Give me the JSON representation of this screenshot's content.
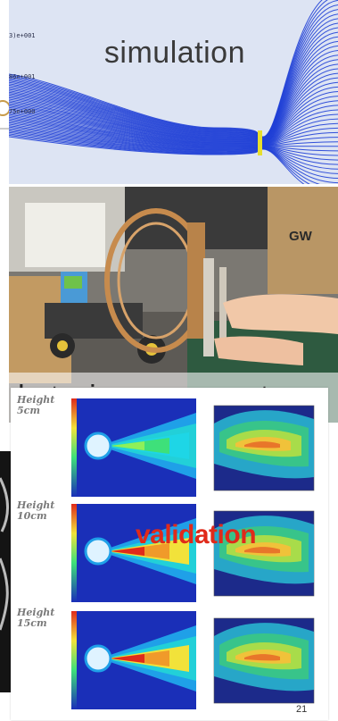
{
  "simulation": {
    "caption": "simulation",
    "legend": [
      "3)e+001",
      "86e+001",
      "75e+000"
    ],
    "colors": {
      "stream": "#1f3fd6",
      "background": "#dde4f3",
      "throat": "#e7de2c"
    }
  },
  "anemometer": {
    "caption": "hot-wire anemometer",
    "box_label": "GW"
  },
  "validation": {
    "caption": "validation",
    "rows": [
      {
        "label_top": "Height",
        "label_bottom": "5cm"
      },
      {
        "label_top": "Height",
        "label_bottom": "10cm"
      },
      {
        "label_top": "Height",
        "label_bottom": "15cm"
      }
    ],
    "colors": {
      "caption": "#e02a1a"
    }
  },
  "page_number": "21"
}
